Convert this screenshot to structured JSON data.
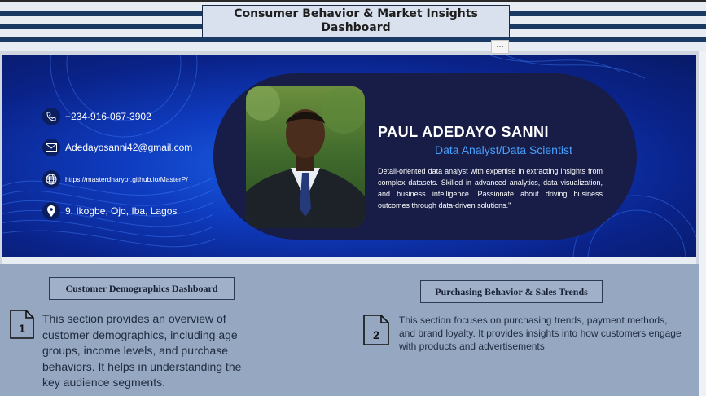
{
  "dashboard": {
    "title": "Consumer Behavior & Market Insights Dashboard",
    "more_label": "..."
  },
  "profile": {
    "name": "PAUL ADEDAYO SANNI",
    "role": "Data Analyst/Data Scientist",
    "bio": "Detail-oriented data analyst with expertise in extracting insights from complex datasets. Skilled in advanced analytics, data visualization, and business intelligence. Passionate about driving business outcomes through data-driven solutions.\"",
    "contacts": {
      "phone": "+234-916-067-3902",
      "email": "Adedayosanni42@gmail.com",
      "website": "https://masterdharyor.github.io/MasterP/",
      "address": "9, Ikogbe, Ojo, Iba, Lagos"
    }
  },
  "sections": [
    {
      "number": "1",
      "title": "Customer Demographics Dashboard",
      "description": "This section provides an overview of customer demographics, including age groups, income levels, and purchase behaviors. It helps in understanding the key audience segments."
    },
    {
      "number": "2",
      "title": "Purchasing Behavior & Sales Trends",
      "description": "This section focuses on purchasing trends, payment methods, and brand loyalty. It provides insights into how customers engage with products and advertisements"
    }
  ],
  "colors": {
    "stripe": "#1b3a64",
    "hero_blue": "#0f3cc0",
    "card": "#181d47",
    "accent": "#46a0ff",
    "lower_bg": "#95a7c1"
  }
}
